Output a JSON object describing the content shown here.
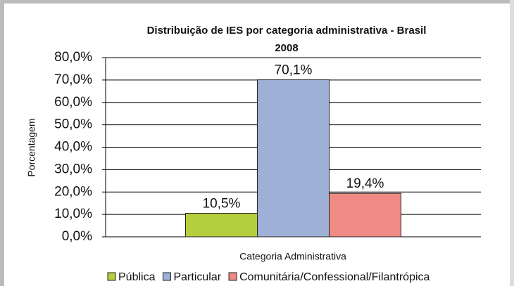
{
  "chart_data": {
    "type": "bar",
    "title": [
      "Distribuição de IES por categoria administrativa - Brasil",
      "2008"
    ],
    "x_label": "Categoria Administrativa",
    "y_label": "Porcentagem",
    "categories": [
      null
    ],
    "series": [
      {
        "name": "Pública",
        "color": "#b5cf3c",
        "values": [
          10.5
        ],
        "value_labels": [
          "10,5%"
        ]
      },
      {
        "name": "Particular",
        "color": "#9fb0d6",
        "values": [
          70.1
        ],
        "value_labels": [
          "70,1%"
        ]
      },
      {
        "name": "Comunitária/Confessional/Filantrópica",
        "color": "#ef8a84",
        "values": [
          19.4
        ],
        "value_labels": [
          "19,4%"
        ]
      }
    ],
    "ylim": [
      0,
      80
    ],
    "yticks": [
      {
        "value": 0,
        "label": "0,0%"
      },
      {
        "value": 10,
        "label": "10,0%"
      },
      {
        "value": 20,
        "label": "20,0%"
      },
      {
        "value": 30,
        "label": "30,0%"
      },
      {
        "value": 40,
        "label": "40,0%"
      },
      {
        "value": 50,
        "label": "50,0%"
      },
      {
        "value": 60,
        "label": "60,0%"
      },
      {
        "value": 70,
        "label": "70,0%"
      },
      {
        "value": 80,
        "label": "80,0%"
      }
    ],
    "grid": true,
    "legend": "bottom"
  }
}
